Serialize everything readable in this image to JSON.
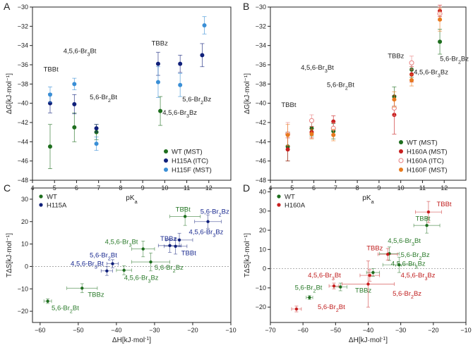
{
  "colors": {
    "wt": "#1e6e1e",
    "h115a": "#10207a",
    "h115f": "#3a8fd6",
    "h160a": "#c81e1e",
    "h160a_itc": "#e88080",
    "h160f": "#e87a1e",
    "green_label": "#2a7a2a",
    "blue_label": "#1a2a90",
    "red_label": "#c01e1e"
  },
  "chart_data": [
    {
      "panel": "A",
      "type": "scatter",
      "xlabel": "pKa",
      "ylabel": "ΔG[kJ·mol⁻¹]",
      "xlim": [
        4,
        13
      ],
      "ylim": [
        -48,
        -30
      ],
      "xticks": [
        4,
        5,
        6,
        7,
        8,
        9,
        10,
        11,
        12
      ],
      "yticks": [
        -48,
        -46,
        -44,
        -42,
        -40,
        -38,
        -36,
        -34,
        -32,
        -30
      ],
      "legend_position": "bottom-right",
      "series": [
        {
          "name": "WT (MST)",
          "color_key": "wt",
          "points": [
            {
              "x": 4.8,
              "y": -44.5,
              "err": 2.3
            },
            {
              "x": 5.9,
              "y": -42.5,
              "err": 1.5
            },
            {
              "x": 6.9,
              "y": -43.0,
              "err": 0.8
            },
            {
              "x": 9.8,
              "y": -40.8,
              "err": 1.5
            }
          ]
        },
        {
          "name": "H115A (ITC)",
          "color_key": "h115a",
          "points": [
            {
              "x": 4.8,
              "y": -40.0,
              "err": 1.0
            },
            {
              "x": 5.9,
              "y": -40.1,
              "err": 1.0
            },
            {
              "x": 6.9,
              "y": -42.6,
              "err": 0.4
            },
            {
              "x": 9.7,
              "y": -35.9,
              "err": 1.2
            },
            {
              "x": 10.7,
              "y": -35.9,
              "err": 0.9
            },
            {
              "x": 11.7,
              "y": -35.0,
              "err": 1.2
            }
          ]
        },
        {
          "name": "H115F (MST)",
          "color_key": "h115f",
          "points": [
            {
              "x": 4.8,
              "y": -39.1,
              "err": 0.8
            },
            {
              "x": 5.9,
              "y": -38.0,
              "err": 0.6
            },
            {
              "x": 6.9,
              "y": -44.2,
              "err": 0.7
            },
            {
              "x": 9.7,
              "y": -37.8,
              "err": 1.6
            },
            {
              "x": 10.7,
              "y": -38.1,
              "err": 1.2
            },
            {
              "x": 11.8,
              "y": -31.9,
              "err": 0.9
            }
          ]
        }
      ],
      "annotations": [
        {
          "text": "TBBt",
          "x": 4.5,
          "y": -36.7,
          "color_key": "black"
        },
        {
          "text": "4,5,6-Br₃Bt",
          "x": 5.4,
          "y": -34.8,
          "color_key": "black"
        },
        {
          "text": "5,6-Br₂Bt",
          "x": 6.6,
          "y": -39.6,
          "color_key": "black"
        },
        {
          "text": "TBBz",
          "x": 9.4,
          "y": -34.0,
          "color_key": "black"
        },
        {
          "text": "5,6-Br₂Bz",
          "x": 10.8,
          "y": -39.8,
          "color_key": "black"
        },
        {
          "text": "4,5,6-Br₃Bz",
          "x": 9.9,
          "y": -41.2,
          "color_key": "black"
        }
      ]
    },
    {
      "panel": "B",
      "type": "scatter",
      "xlabel": "pKa",
      "ylabel": "ΔG[kJ·mol⁻¹]",
      "xlim": [
        4,
        13
      ],
      "ylim": [
        -48,
        -30
      ],
      "xticks": [
        4,
        5,
        6,
        7,
        8,
        9,
        10,
        11,
        12
      ],
      "yticks": [
        -48,
        -46,
        -44,
        -42,
        -40,
        -38,
        -36,
        -34,
        -32,
        -30
      ],
      "legend_position": "bottom-right",
      "series": [
        {
          "name": "WT (MST)",
          "color_key": "wt",
          "marker": "filled",
          "points": [
            {
              "x": 4.8,
              "y": -44.5,
              "err": 1.5
            },
            {
              "x": 5.9,
              "y": -42.6,
              "err": 0.8
            },
            {
              "x": 6.9,
              "y": -42.9,
              "err": 0.8
            },
            {
              "x": 9.7,
              "y": -39.3,
              "err": 1.0
            },
            {
              "x": 10.5,
              "y": -36.5,
              "err": 0.8
            },
            {
              "x": 11.8,
              "y": -33.6,
              "err": 1.3
            }
          ]
        },
        {
          "name": "H160A (MST)",
          "color_key": "h160a",
          "marker": "filled",
          "points": [
            {
              "x": 4.8,
              "y": -44.8,
              "err": 1.2
            },
            {
              "x": 5.9,
              "y": -43.0,
              "err": 0.6
            },
            {
              "x": 6.9,
              "y": -41.9,
              "err": 0.6
            },
            {
              "x": 9.7,
              "y": -41.2,
              "err": 2.0
            },
            {
              "x": 10.5,
              "y": -37.0,
              "err": 0.8
            },
            {
              "x": 11.8,
              "y": -30.4,
              "err": 0.6
            }
          ]
        },
        {
          "name": "H160A (ITC)",
          "color_key": "h160a_itc",
          "marker": "open",
          "points": [
            {
              "x": 4.8,
              "y": -43.2,
              "err": 1.2
            },
            {
              "x": 5.9,
              "y": -41.8,
              "err": 0.6
            },
            {
              "x": 6.9,
              "y": -42.6,
              "err": 0.6
            },
            {
              "x": 9.7,
              "y": -40.5,
              "err": 0.8
            },
            {
              "x": 10.5,
              "y": -35.8,
              "err": 0.7
            },
            {
              "x": 11.8,
              "y": -30.7,
              "err": 0.7
            }
          ]
        },
        {
          "name": "H160F (MST)",
          "color_key": "h160f",
          "marker": "filled",
          "points": [
            {
              "x": 4.8,
              "y": -43.3,
              "err": 1.1
            },
            {
              "x": 5.9,
              "y": -43.2,
              "err": 0.5
            },
            {
              "x": 6.9,
              "y": -43.3,
              "err": 0.6
            },
            {
              "x": 9.7,
              "y": -39.6,
              "err": 0.8
            },
            {
              "x": 10.5,
              "y": -37.6,
              "err": 0.6
            },
            {
              "x": 11.8,
              "y": -31.3,
              "err": 1.2
            }
          ]
        }
      ],
      "annotations": [
        {
          "text": "TBBt",
          "x": 4.5,
          "y": -40.4,
          "color_key": "black"
        },
        {
          "text": "4,5,6-Br₃Bt",
          "x": 5.4,
          "y": -36.5,
          "color_key": "black"
        },
        {
          "text": "5,6-Br₂Bt",
          "x": 6.6,
          "y": -38.3,
          "color_key": "black"
        },
        {
          "text": "TBBz",
          "x": 9.4,
          "y": -35.3,
          "color_key": "black"
        },
        {
          "text": "4,5,6-Br₃Bz",
          "x": 10.6,
          "y": -37.0,
          "color_key": "black"
        },
        {
          "text": "5,6-Br₂Bz",
          "x": 11.8,
          "y": -35.6,
          "color_key": "black"
        }
      ]
    },
    {
      "panel": "C",
      "type": "scatter",
      "xlabel": "ΔH[kJ·mol⁻¹]",
      "ylabel": "TΔS[kJ·mol⁻¹]",
      "xlim": [
        -62,
        -10
      ],
      "ylim": [
        -25,
        35
      ],
      "xticks": [
        -60,
        -50,
        -40,
        -30,
        -20,
        -10
      ],
      "yticks": [
        -20,
        -10,
        0,
        10,
        20,
        30
      ],
      "zero_line": true,
      "legend_position": "top-left",
      "series": [
        {
          "name": "WT",
          "color_key": "wt",
          "points": [
            {
              "x": -58.0,
              "y": -15.5,
              "xerr": 1.0,
              "yerr": 1.0,
              "label": "5,6-Br₂Bt"
            },
            {
              "x": -49.0,
              "y": -9.7,
              "xerr": 4.0,
              "yerr": 2.0,
              "label": "TBBz"
            },
            {
              "x": -38.0,
              "y": -1.7,
              "xerr": 2.0,
              "yerr": 2.0,
              "label": "4,5,6-Br₃Bz"
            },
            {
              "x": -33.0,
              "y": 7.8,
              "xerr": 3.0,
              "yerr": 3.5,
              "label": "4,5,6-Br₃Bt"
            },
            {
              "x": -31.0,
              "y": 2.0,
              "xerr": 5.0,
              "yerr": 4.0,
              "label": "5,6-Br₂Bz"
            },
            {
              "x": -22.0,
              "y": 22.3,
              "xerr": 4.0,
              "yerr": 4.0,
              "label": "TBBt"
            }
          ]
        },
        {
          "name": "H115A",
          "color_key": "h115a",
          "points": [
            {
              "x": -41.0,
              "y": 1.2,
              "xerr": 1.5,
              "yerr": 1.8,
              "label": "5,6-Br₂Bt"
            },
            {
              "x": -42.5,
              "y": -2.0,
              "xerr": 1.5,
              "yerr": 2.0,
              "label": "4,5,6-Br₃Bt"
            },
            {
              "x": -26.0,
              "y": 9.3,
              "xerr": 3.0,
              "yerr": 3.0,
              "label": "TBBz"
            },
            {
              "x": -24.5,
              "y": 9.0,
              "xerr": 3.0,
              "yerr": 3.5,
              "label": "TBBt"
            },
            {
              "x": -23.5,
              "y": 11.8,
              "xerr": 3.5,
              "yerr": 3.0,
              "label": "4,5,6-Br₃Bz"
            },
            {
              "x": -16.0,
              "y": 20.0,
              "xerr": 3.5,
              "yerr": 3.0,
              "label": "5,6-Br₂Bz"
            }
          ]
        }
      ],
      "annotations": [
        {
          "text": "TBBt",
          "x": -24.5,
          "y": 24.5,
          "color_key": "green_label"
        },
        {
          "text": "5,6-Br₂Bz",
          "x": -18.0,
          "y": 23.5,
          "color_key": "blue_label"
        },
        {
          "text": "4,5,6-Br₃Bz",
          "x": -21.0,
          "y": 14.5,
          "color_key": "blue_label"
        },
        {
          "text": "4,5,6-Br₃Bt",
          "x": -43.0,
          "y": 10.0,
          "color_key": "green_label"
        },
        {
          "text": "TBBz",
          "x": -28.5,
          "y": 11.5,
          "color_key": "blue_label"
        },
        {
          "text": "TBBt",
          "x": -23.0,
          "y": 5.0,
          "color_key": "blue_label"
        },
        {
          "text": "5,6-Br₂Bt",
          "x": -47.0,
          "y": 4.0,
          "color_key": "blue_label"
        },
        {
          "text": "4,5,6-Br₃Bt",
          "x": -52.0,
          "y": 0.3,
          "color_key": "blue_label"
        },
        {
          "text": "5,6-Br₂Bz",
          "x": -30.0,
          "y": -1.5,
          "color_key": "green_label"
        },
        {
          "text": "4,5,6-Br₃Bz",
          "x": -38.0,
          "y": -6.0,
          "color_key": "green_label"
        },
        {
          "text": "TBBz",
          "x": -47.5,
          "y": -13.5,
          "color_key": "green_label"
        },
        {
          "text": "5,6-Br₂Bt",
          "x": -57.0,
          "y": -19.5,
          "color_key": "green_label"
        }
      ]
    },
    {
      "panel": "D",
      "type": "scatter",
      "xlabel": "ΔH[kJ·mol⁻¹]",
      "ylabel": "TΔS[kJ·mol⁻¹]",
      "xlim": [
        -70,
        -10
      ],
      "ylim": [
        -28,
        42
      ],
      "xticks": [
        -70,
        -60,
        -50,
        -40,
        -30,
        -20,
        -10
      ],
      "yticks": [
        -20,
        -10,
        0,
        10,
        20,
        30,
        40
      ],
      "zero_line": true,
      "legend_position": "top-left",
      "series": [
        {
          "name": "WT",
          "color_key": "wt",
          "points": [
            {
              "x": -58.0,
              "y": -15.0,
              "xerr": 1.0,
              "yerr": 1.0,
              "label": "5,6-Br₂Bt"
            },
            {
              "x": -48.5,
              "y": -9.5,
              "xerr": 2.0,
              "yerr": 2.0,
              "label": "TBBz"
            },
            {
              "x": -38.5,
              "y": -2.0,
              "xerr": 2.0,
              "yerr": 2.0,
              "label": "4,5,6-Br₃Bz"
            },
            {
              "x": -33.5,
              "y": 7.8,
              "xerr": 3.0,
              "yerr": 3.5,
              "label": "4,5,6-Br₃Bt"
            },
            {
              "x": -30.5,
              "y": 2.0,
              "xerr": 5.0,
              "yerr": 4.0,
              "label": "5,6-Br₂Bz"
            },
            {
              "x": -22.0,
              "y": 22.5,
              "xerr": 4.0,
              "yerr": 4.0,
              "label": "TBBt"
            }
          ]
        },
        {
          "name": "H160A",
          "color_key": "h160a",
          "points": [
            {
              "x": -62.0,
              "y": -21.0,
              "xerr": 1.5,
              "yerr": 1.5,
              "label": "5,6-Br₂Bt"
            },
            {
              "x": -50.5,
              "y": -9.0,
              "xerr": 1.5,
              "yerr": 1.5,
              "label": "4,5,6-Br₃Bt"
            },
            {
              "x": -40.0,
              "y": -8.0,
              "xerr": 8.0,
              "yerr": 12.0,
              "label": "5,6-Br₂Bz"
            },
            {
              "x": -39.5,
              "y": -3.5,
              "xerr": 3.0,
              "yerr": 3.0,
              "label": "4,5,6-Br₃Bz"
            },
            {
              "x": -34.0,
              "y": 7.5,
              "xerr": 3.0,
              "yerr": 3.0,
              "label": "TBBz"
            },
            {
              "x": -21.5,
              "y": 29.5,
              "xerr": 4.0,
              "yerr": 5.5,
              "label": "TBBt"
            }
          ]
        }
      ],
      "annotations": [
        {
          "text": "TBBt",
          "x": -19.0,
          "y": 32.5,
          "color_key": "red_label"
        },
        {
          "text": "TBBt",
          "x": -25.5,
          "y": 25.0,
          "color_key": "green_label"
        },
        {
          "text": "4,5,6-Br₃Bt",
          "x": -34.0,
          "y": 13.5,
          "color_key": "green_label"
        },
        {
          "text": "TBBz",
          "x": -40.5,
          "y": 9.5,
          "color_key": "red_label"
        },
        {
          "text": "5,6-Br₂Bz",
          "x": -30.0,
          "y": 6.0,
          "color_key": "green_label"
        },
        {
          "text": "4,5,6-Br₃Bz",
          "x": -33.0,
          "y": 1.5,
          "color_key": "green_label"
        },
        {
          "text": "4,5,6-Br₃Bt",
          "x": -58.5,
          "y": -4.5,
          "color_key": "red_label"
        },
        {
          "text": "4,5,6-Br₃Bz",
          "x": -30.0,
          "y": -4.5,
          "color_key": "red_label"
        },
        {
          "text": "5,6-Br₂Bt",
          "x": -62.5,
          "y": -11.0,
          "color_key": "green_label"
        },
        {
          "text": "TBBz",
          "x": -44.0,
          "y": -12.5,
          "color_key": "green_label"
        },
        {
          "text": "5,6-Br₂Bz",
          "x": -32.5,
          "y": -14.0,
          "color_key": "red_label"
        },
        {
          "text": "5,6-Br₂Bt",
          "x": -55.5,
          "y": -21.0,
          "color_key": "red_label"
        }
      ]
    }
  ]
}
